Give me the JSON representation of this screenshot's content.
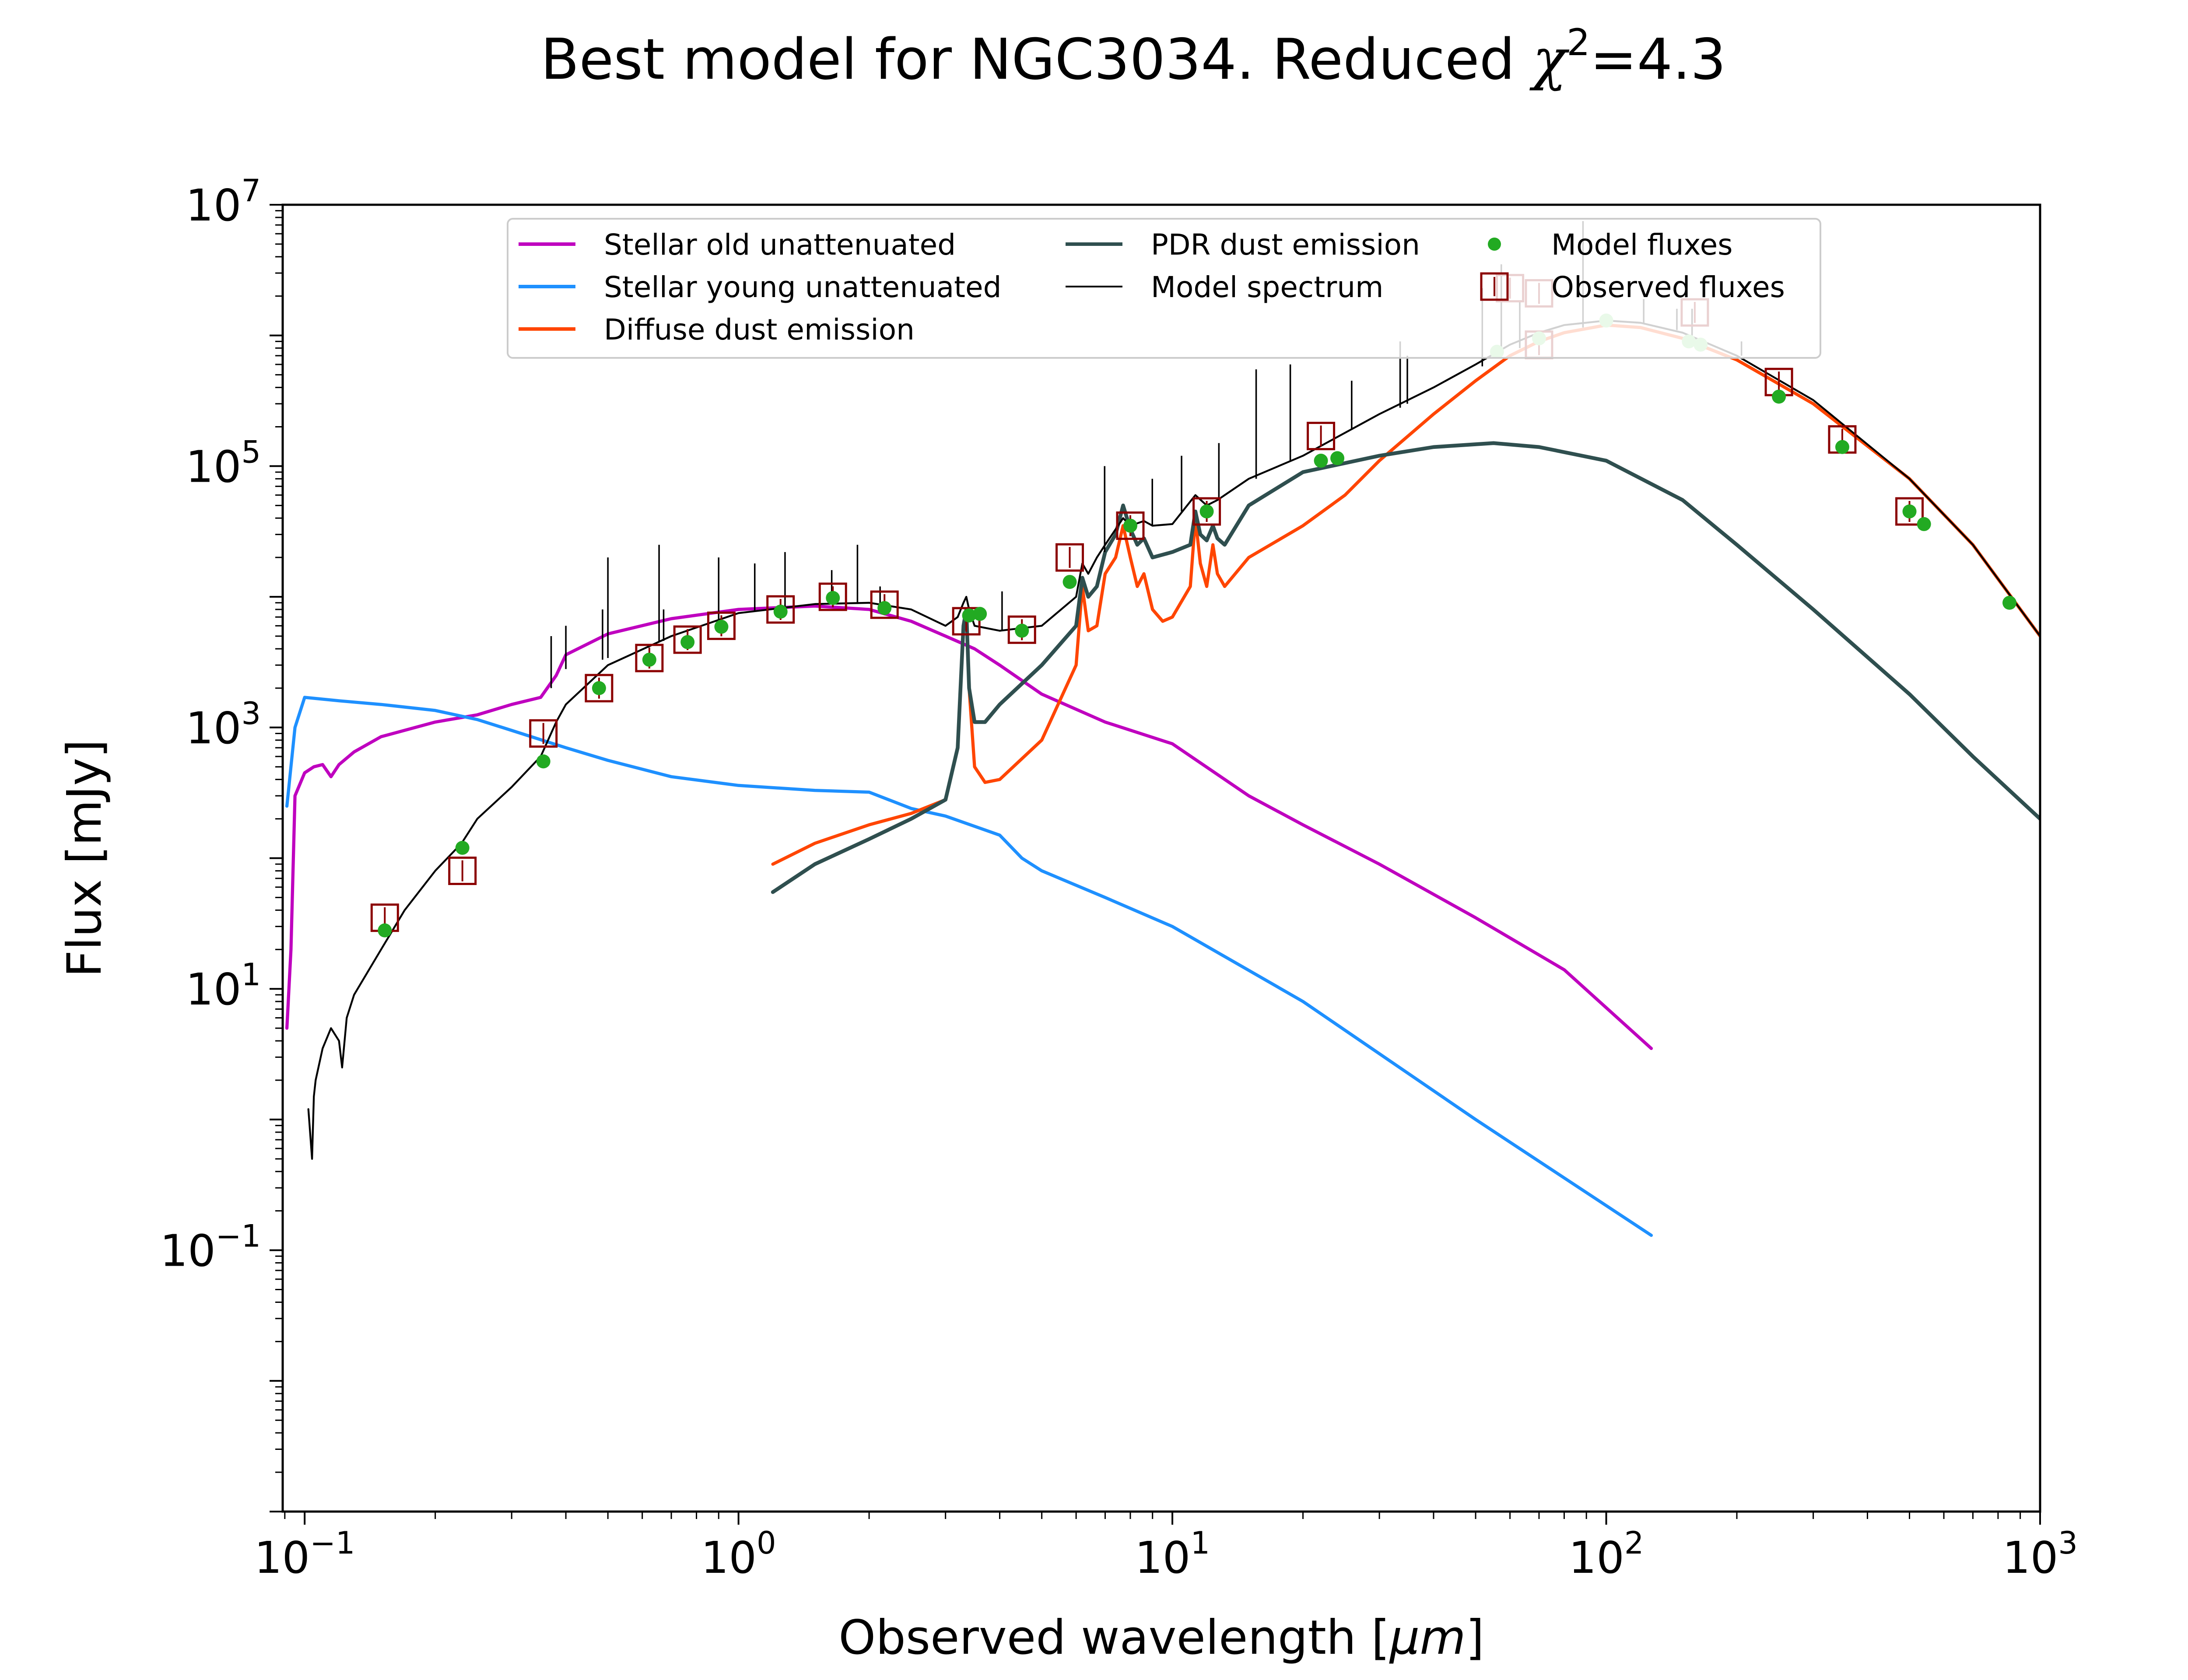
{
  "chart_data": {
    "type": "line",
    "title_main": "Best model for NGC3034. Reduced ",
    "title_chi": "χ",
    "title_sup": "2",
    "title_tail": "=4.3",
    "xlabel_prefix": "Observed wavelength [",
    "xlabel_unit": "μm",
    "xlabel_suffix": "]",
    "ylabel": "Flux [mJy]",
    "xscale": "log",
    "yscale": "log",
    "xlim": [
      0.089,
      1000
    ],
    "ylim": [
      0.001,
      10000000
    ],
    "x_ticks": [
      {
        "base": "10",
        "exp": "−1",
        "value": 0.1
      },
      {
        "base": "10",
        "exp": "0",
        "value": 1
      },
      {
        "base": "10",
        "exp": "1",
        "value": 10
      },
      {
        "base": "10",
        "exp": "2",
        "value": 100
      },
      {
        "base": "10",
        "exp": "3",
        "value": 1000
      }
    ],
    "y_ticks": [
      {
        "base": "10",
        "exp": "−1",
        "value": 0.1
      },
      {
        "base": "10",
        "exp": "1",
        "value": 10
      },
      {
        "base": "10",
        "exp": "3",
        "value": 1000
      },
      {
        "base": "10",
        "exp": "5",
        "value": 100000
      },
      {
        "base": "10",
        "exp": "7",
        "value": 10000000
      }
    ],
    "grid": false,
    "legend_position": "top",
    "legend": [
      {
        "label": "Stellar old unattenuated",
        "kind": "line",
        "color": "#bf00bf"
      },
      {
        "label": "Stellar young unattenuated",
        "kind": "line",
        "color": "#1e90ff"
      },
      {
        "label": "Diffuse dust emission",
        "kind": "line",
        "color": "#ff4500"
      },
      {
        "label": "PDR dust emission",
        "kind": "line",
        "color": "#2f4f4f"
      },
      {
        "label": "Model spectrum",
        "kind": "thinline",
        "color": "#000000"
      },
      {
        "label": "Model fluxes",
        "kind": "dot",
        "color": "#22aa22"
      },
      {
        "label": "Observed fluxes",
        "kind": "square",
        "color": "#8b0000"
      }
    ],
    "series": [
      {
        "name": "Stellar old unattenuated",
        "color": "#bf00bf",
        "width": 2.2,
        "x": [
          0.091,
          0.093,
          0.095,
          0.1,
          0.105,
          0.11,
          0.115,
          0.12,
          0.13,
          0.15,
          0.2,
          0.25,
          0.3,
          0.35,
          0.38,
          0.4,
          0.5,
          0.7,
          1.0,
          1.5,
          2.0,
          2.5,
          3.0,
          3.5,
          4.0,
          5.0,
          7.0,
          10.0,
          15.0,
          20.0,
          30.0,
          50.0,
          80.0,
          127.0
        ],
        "y": [
          5,
          20,
          300,
          450,
          500,
          520,
          420,
          520,
          650,
          850,
          1100,
          1250,
          1500,
          1700,
          2500,
          3600,
          5200,
          6800,
          8000,
          8500,
          8000,
          6500,
          5000,
          4000,
          3000,
          1800,
          1100,
          750,
          300,
          180,
          90,
          35,
          14,
          3.5
        ]
      },
      {
        "name": "Stellar young unattenuated",
        "color": "#1e90ff",
        "width": 2.2,
        "x": [
          0.091,
          0.095,
          0.1,
          0.12,
          0.15,
          0.2,
          0.25,
          0.3,
          0.4,
          0.5,
          0.7,
          1.0,
          1.5,
          2.0,
          2.5,
          3.0,
          4.0,
          4.5,
          5.0,
          7.0,
          10.0,
          20.0,
          50.0,
          127.0
        ],
        "y": [
          250,
          1000,
          1700,
          1600,
          1500,
          1350,
          1150,
          950,
          700,
          560,
          420,
          360,
          330,
          320,
          240,
          210,
          150,
          100,
          80,
          50,
          30,
          8,
          1,
          0.13
        ]
      },
      {
        "name": "Diffuse dust emission",
        "color": "#ff4500",
        "width": 2.2,
        "x": [
          1.2,
          1.5,
          2.0,
          2.5,
          3.0,
          3.2,
          3.3,
          3.35,
          3.4,
          3.5,
          3.7,
          4.0,
          5.0,
          6.0,
          6.2,
          6.4,
          6.7,
          7.0,
          7.4,
          7.7,
          8.0,
          8.3,
          8.6,
          9.0,
          9.5,
          10.0,
          11.0,
          11.3,
          11.6,
          12.0,
          12.4,
          12.7,
          13.2,
          15.0,
          20.0,
          25.0,
          30.0,
          40.0,
          50.0,
          60.0,
          70.0,
          80.0,
          100.0,
          120.0,
          150.0,
          200.0,
          300.0,
          500.0,
          700.0,
          1000.0
        ],
        "y": [
          90,
          130,
          180,
          220,
          280,
          700,
          6000,
          8000,
          2000,
          500,
          380,
          400,
          800,
          3000,
          12000,
          5500,
          6000,
          15000,
          20000,
          35000,
          20000,
          12000,
          15000,
          8000,
          6500,
          7000,
          12000,
          40000,
          18000,
          12000,
          25000,
          15000,
          12000,
          20000,
          35000,
          60000,
          110000,
          250000,
          450000,
          700000,
          900000,
          1050000,
          1200000,
          1150000,
          950000,
          650000,
          300000,
          80000,
          25000,
          5000
        ]
      },
      {
        "name": "PDR dust emission",
        "color": "#2f4f4f",
        "width": 2.6,
        "x": [
          1.2,
          1.5,
          2.0,
          2.5,
          3.0,
          3.2,
          3.3,
          3.35,
          3.4,
          3.5,
          3.7,
          4.0,
          5.0,
          6.0,
          6.2,
          6.4,
          6.7,
          7.0,
          7.4,
          7.7,
          8.0,
          8.3,
          8.6,
          9.0,
          9.5,
          10.0,
          11.0,
          11.3,
          11.6,
          12.0,
          12.4,
          12.7,
          13.2,
          15.0,
          20.0,
          30.0,
          40.0,
          55.0,
          70.0,
          100.0,
          150.0,
          200.0,
          300.0,
          500.0,
          700.0,
          1000.0
        ],
        "y": [
          55,
          90,
          140,
          200,
          280,
          700,
          6000,
          8000,
          2000,
          1100,
          1100,
          1500,
          3000,
          6000,
          14000,
          10000,
          12000,
          22000,
          30000,
          50000,
          33000,
          25000,
          28000,
          20000,
          21000,
          22000,
          25000,
          45000,
          30000,
          27000,
          35000,
          28000,
          25000,
          50000,
          90000,
          120000,
          140000,
          150000,
          140000,
          110000,
          55000,
          25000,
          8000,
          1800,
          600,
          200
        ]
      },
      {
        "name": "Model spectrum",
        "color": "#000000",
        "width": 1.3,
        "x": [
          0.102,
          0.104,
          0.105,
          0.106,
          0.11,
          0.115,
          0.12,
          0.122,
          0.125,
          0.13,
          0.15,
          0.17,
          0.2,
          0.23,
          0.25,
          0.3,
          0.35,
          0.38,
          0.4,
          0.5,
          0.7,
          1.0,
          1.5,
          2.0,
          2.5,
          3.0,
          3.2,
          3.3,
          3.35,
          3.4,
          3.5,
          4.0,
          5.0,
          6.0,
          6.2,
          6.4,
          6.7,
          7.0,
          7.7,
          8.0,
          8.6,
          9.0,
          10.0,
          11.3,
          12.0,
          12.7,
          15.0,
          20.0,
          25.0,
          30.0,
          40.0,
          50.0,
          60.0,
          70.0,
          80.0,
          100.0,
          120.0,
          150.0,
          200.0,
          300.0,
          500.0,
          700.0,
          1000.0
        ],
        "y": [
          1.2,
          0.5,
          1.5,
          2,
          3.5,
          5,
          4,
          2.5,
          6,
          9,
          20,
          40,
          80,
          130,
          200,
          350,
          600,
          1100,
          1500,
          3000,
          5000,
          7500,
          8800,
          9000,
          8000,
          6000,
          7000,
          9000,
          10000,
          8000,
          6000,
          5500,
          6000,
          10000,
          18000,
          15000,
          20000,
          25000,
          40000,
          35000,
          38000,
          35000,
          36000,
          60000,
          50000,
          55000,
          80000,
          120000,
          180000,
          250000,
          400000,
          600000,
          850000,
          1050000,
          1200000,
          1300000,
          1250000,
          1050000,
          700000,
          320000,
          80000,
          25000,
          5000
        ]
      }
    ],
    "emission_lines": [
      {
        "x": 0.37,
        "y_base": 2000,
        "y_top": 5000
      },
      {
        "x": 0.4,
        "y_base": 2800,
        "y_top": 6000
      },
      {
        "x": 0.486,
        "y_base": 3300,
        "y_top": 8000
      },
      {
        "x": 0.5,
        "y_base": 3400,
        "y_top": 20000
      },
      {
        "x": 0.656,
        "y_base": 4500,
        "y_top": 25000
      },
      {
        "x": 0.672,
        "y_base": 4600,
        "y_top": 8000
      },
      {
        "x": 0.9,
        "y_base": 6000,
        "y_top": 20000
      },
      {
        "x": 1.09,
        "y_base": 7800,
        "y_top": 18000
      },
      {
        "x": 1.28,
        "y_base": 8200,
        "y_top": 22000
      },
      {
        "x": 1.64,
        "y_base": 8700,
        "y_top": 16000
      },
      {
        "x": 1.88,
        "y_base": 8800,
        "y_top": 25000
      },
      {
        "x": 2.12,
        "y_base": 8500,
        "y_top": 12000
      },
      {
        "x": 4.05,
        "y_base": 5500,
        "y_top": 11000
      },
      {
        "x": 6.98,
        "y_base": 22000,
        "y_top": 100000
      },
      {
        "x": 8.99,
        "y_base": 35000,
        "y_top": 80000
      },
      {
        "x": 10.5,
        "y_base": 45000,
        "y_top": 120000
      },
      {
        "x": 12.8,
        "y_base": 55000,
        "y_top": 150000
      },
      {
        "x": 15.6,
        "y_base": 80000,
        "y_top": 550000
      },
      {
        "x": 18.7,
        "y_base": 110000,
        "y_top": 600000
      },
      {
        "x": 25.9,
        "y_base": 190000,
        "y_top": 450000
      },
      {
        "x": 33.5,
        "y_base": 280000,
        "y_top": 900000
      },
      {
        "x": 34.8,
        "y_base": 300000,
        "y_top": 700000
      },
      {
        "x": 51.8,
        "y_base": 580000,
        "y_top": 2300000
      },
      {
        "x": 57.3,
        "y_base": 700000,
        "y_top": 3500000
      },
      {
        "x": 63.2,
        "y_base": 800000,
        "y_top": 1800000
      },
      {
        "x": 88.4,
        "y_base": 1150000,
        "y_top": 7500000
      },
      {
        "x": 122.0,
        "y_base": 1250000,
        "y_top": 1900000
      },
      {
        "x": 145.5,
        "y_base": 1100000,
        "y_top": 1600000
      },
      {
        "x": 157.7,
        "y_base": 1000000,
        "y_top": 1600000
      },
      {
        "x": 205.0,
        "y_base": 700000,
        "y_top": 900000
      }
    ],
    "model_fluxes": {
      "color": "#22aa22",
      "x": [
        0.153,
        0.231,
        0.355,
        0.477,
        0.623,
        0.763,
        0.913,
        1.25,
        1.65,
        2.17,
        3.4,
        3.6,
        4.5,
        5.8,
        8.0,
        12.0,
        22.0,
        24.0,
        250.0,
        350.0,
        500.0,
        540.0,
        850.0
      ],
      "y": [
        28,
        120,
        550,
        2000,
        3300,
        4500,
        5900,
        7700,
        9800,
        8200,
        7200,
        7400,
        5500,
        13000,
        35000,
        45000,
        110000,
        115000,
        340000,
        140000,
        45000,
        36000,
        9000
      ]
    },
    "model_fluxes_light": {
      "color": "#88dd88",
      "x": [
        56.0,
        70.0,
        100.0,
        155.0,
        165.0
      ],
      "y": [
        750000,
        950000,
        1300000,
        900000,
        850000
      ]
    },
    "observed_fluxes": {
      "color": "#8b0000",
      "x": [
        0.153,
        0.231,
        0.355,
        0.477,
        0.623,
        0.763,
        0.913,
        1.25,
        1.65,
        2.17,
        3.35,
        4.5,
        5.8,
        8.0,
        12.0,
        22.0,
        60.0,
        70.0,
        70.0,
        160.0,
        250.0,
        350.0,
        500.0
      ],
      "y": [
        35,
        80,
        900,
        2000,
        3400,
        4700,
        6000,
        8000,
        10000,
        8700,
        6500,
        5600,
        20000,
        35000,
        45000,
        170000,
        2300000,
        2100000,
        850000,
        1500000,
        440000,
        160000,
        45000
      ]
    }
  }
}
